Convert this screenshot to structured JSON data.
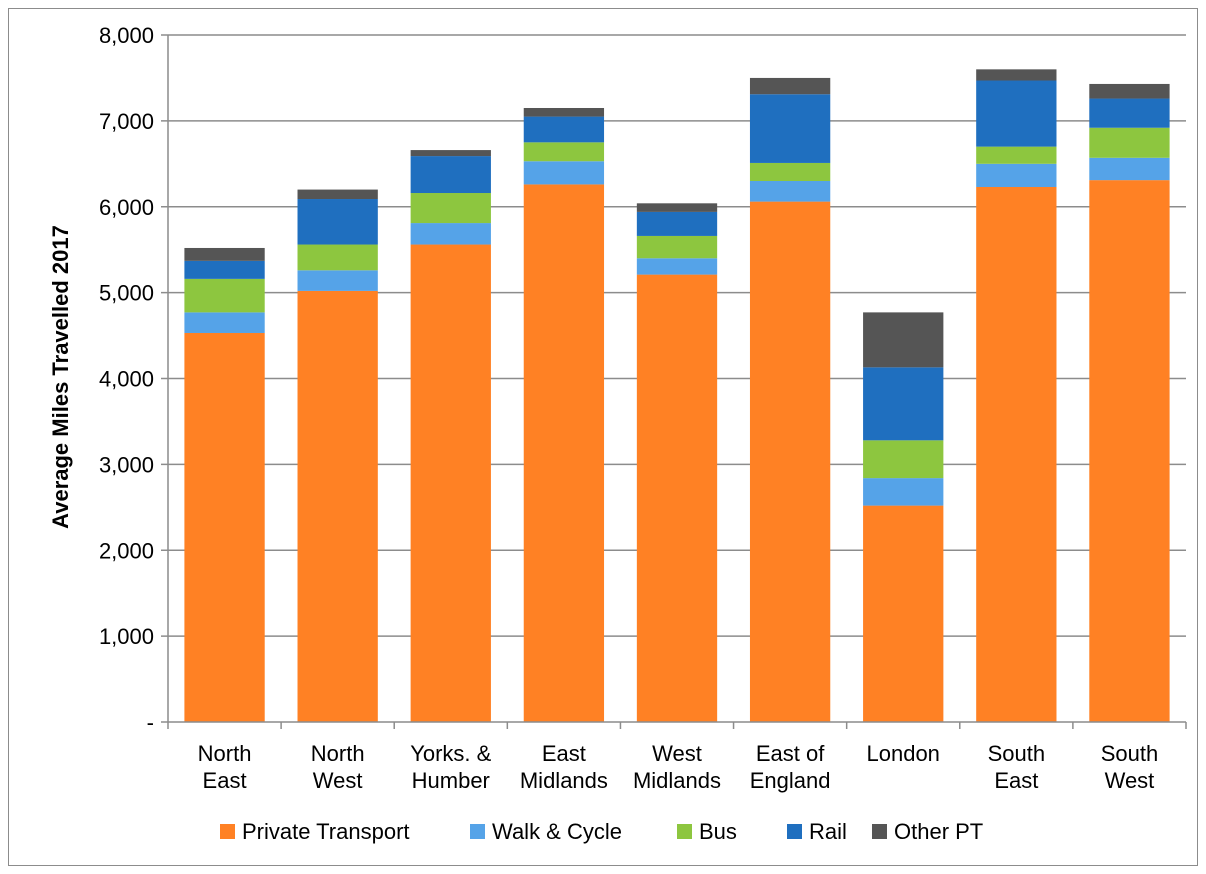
{
  "chart_data": {
    "type": "bar",
    "stacked": true,
    "ylabel": "Average Miles Travelled 2017",
    "xlabel": "",
    "ylim": [
      0,
      8000
    ],
    "yticks": [
      0,
      1000,
      2000,
      3000,
      4000,
      5000,
      6000,
      7000,
      8000
    ],
    "ytick_labels": [
      "-",
      "1,000",
      "2,000",
      "3,000",
      "4,000",
      "5,000",
      "6,000",
      "7,000",
      "8,000"
    ],
    "grid": true,
    "legend_position": "bottom",
    "categories": [
      [
        "North",
        "East"
      ],
      [
        "North",
        "West"
      ],
      [
        "Yorks. &",
        "Humber"
      ],
      [
        "East",
        "Midlands"
      ],
      [
        "West",
        "Midlands"
      ],
      [
        "East of",
        "England"
      ],
      [
        "London"
      ],
      [
        "South",
        "East"
      ],
      [
        "South",
        "West"
      ]
    ],
    "series": [
      {
        "name": "Private Transport",
        "color": "#ff8124",
        "values": [
          4530,
          5020,
          5560,
          6260,
          5210,
          6060,
          2520,
          6230,
          6310
        ]
      },
      {
        "name": "Walk & Cycle",
        "color": "#55a3e8",
        "values": [
          240,
          240,
          250,
          270,
          190,
          240,
          320,
          270,
          260
        ]
      },
      {
        "name": "Bus",
        "color": "#8dc63f",
        "values": [
          390,
          300,
          350,
          220,
          260,
          210,
          440,
          200,
          350
        ]
      },
      {
        "name": "Rail",
        "color": "#1f6fbf",
        "values": [
          210,
          530,
          430,
          300,
          280,
          800,
          850,
          770,
          340
        ]
      },
      {
        "name": "Other PT",
        "color": "#555555",
        "values": [
          150,
          110,
          70,
          100,
          100,
          190,
          640,
          130,
          170
        ]
      }
    ]
  }
}
